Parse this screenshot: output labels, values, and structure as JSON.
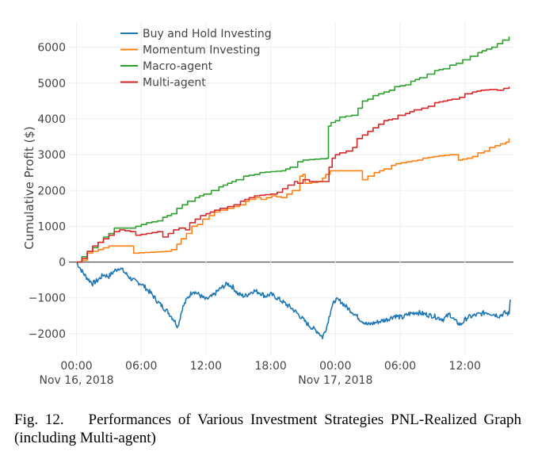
{
  "caption": {
    "label": "Fig. 12.",
    "text": "Performances of Various Investment Strategies PNL-Realized Graph (including Multi-agent)"
  },
  "chart_data": {
    "type": "line",
    "title": "",
    "xlabel": "",
    "ylabel": "Cumulative Profit ($)",
    "x_unit": "hours since Nov 16, 2018 00:00",
    "xlim": [
      -0.7,
      40.5
    ],
    "ylim": [
      -2600,
      6700
    ],
    "y_ticks": [
      -2000,
      -1000,
      0,
      1000,
      2000,
      3000,
      4000,
      5000,
      6000
    ],
    "y_tick_labels": [
      "−2000",
      "−1000",
      "0",
      "1000",
      "2000",
      "3000",
      "4000",
      "5000",
      "6000"
    ],
    "x_ticks": [
      {
        "x": 0,
        "label": "00:00",
        "sublabel": "Nov 16, 2018"
      },
      {
        "x": 6,
        "label": "06:00",
        "sublabel": ""
      },
      {
        "x": 12,
        "label": "12:00",
        "sublabel": ""
      },
      {
        "x": 18,
        "label": "18:00",
        "sublabel": ""
      },
      {
        "x": 24,
        "label": "00:00",
        "sublabel": "Nov 17, 2018"
      },
      {
        "x": 30,
        "label": "06:00",
        "sublabel": ""
      },
      {
        "x": 36,
        "label": "12:00",
        "sublabel": ""
      }
    ],
    "grid": true,
    "legend_position": "top-left",
    "series": [
      {
        "name": "Buy and Hold Investing",
        "color": "#1f77b4",
        "style": "noisy",
        "points": [
          [
            0,
            0
          ],
          [
            0.3,
            -150
          ],
          [
            0.6,
            -300
          ],
          [
            1,
            -450
          ],
          [
            1.5,
            -600
          ],
          [
            2,
            -500
          ],
          [
            2.5,
            -350
          ],
          [
            3,
            -400
          ],
          [
            3.5,
            -250
          ],
          [
            4,
            -150
          ],
          [
            4.5,
            -300
          ],
          [
            5,
            -450
          ],
          [
            5.5,
            -550
          ],
          [
            6,
            -600
          ],
          [
            6.5,
            -750
          ],
          [
            7,
            -900
          ],
          [
            7.5,
            -1100
          ],
          [
            8,
            -1250
          ],
          [
            8.5,
            -1400
          ],
          [
            9,
            -1600
          ],
          [
            9.4,
            -1800
          ],
          [
            9.8,
            -1300
          ],
          [
            10.3,
            -1000
          ],
          [
            10.8,
            -800
          ],
          [
            11.3,
            -900
          ],
          [
            12,
            -1050
          ],
          [
            12.6,
            -950
          ],
          [
            13.3,
            -750
          ],
          [
            14,
            -600
          ],
          [
            14.5,
            -700
          ],
          [
            15,
            -900
          ],
          [
            15.6,
            -950
          ],
          [
            16.4,
            -800
          ],
          [
            17,
            -850
          ],
          [
            17.5,
            -950
          ],
          [
            18,
            -900
          ],
          [
            18.6,
            -1000
          ],
          [
            19.3,
            -1150
          ],
          [
            20,
            -1300
          ],
          [
            20.7,
            -1500
          ],
          [
            21.3,
            -1700
          ],
          [
            21.9,
            -1850
          ],
          [
            22.4,
            -1950
          ],
          [
            22.8,
            -2100
          ],
          [
            23.2,
            -1800
          ],
          [
            23.6,
            -1300
          ],
          [
            24,
            -1050
          ],
          [
            24.5,
            -1100
          ],
          [
            25,
            -1250
          ],
          [
            25.6,
            -1400
          ],
          [
            26.3,
            -1600
          ],
          [
            27,
            -1750
          ],
          [
            27.6,
            -1700
          ],
          [
            28.2,
            -1650
          ],
          [
            28.8,
            -1600
          ],
          [
            29.5,
            -1500
          ],
          [
            30.2,
            -1550
          ],
          [
            30.8,
            -1450
          ],
          [
            31.5,
            -1400
          ],
          [
            32.2,
            -1450
          ],
          [
            33,
            -1500
          ],
          [
            33.5,
            -1550
          ],
          [
            34,
            -1600
          ],
          [
            34.6,
            -1450
          ],
          [
            35.1,
            -1650
          ],
          [
            35.6,
            -1750
          ],
          [
            36.2,
            -1550
          ],
          [
            36.8,
            -1500
          ],
          [
            37.4,
            -1450
          ],
          [
            38,
            -1400
          ],
          [
            38.6,
            -1450
          ],
          [
            39.2,
            -1500
          ],
          [
            39.7,
            -1420
          ],
          [
            40.1,
            -1450
          ],
          [
            40.2,
            -1050
          ]
        ]
      },
      {
        "name": "Momentum Investing",
        "color": "#ff7f0e",
        "style": "step",
        "points": [
          [
            0,
            0
          ],
          [
            0.5,
            50
          ],
          [
            1,
            250
          ],
          [
            1.5,
            300
          ],
          [
            2,
            350
          ],
          [
            2.5,
            400
          ],
          [
            3,
            450
          ],
          [
            5,
            450
          ],
          [
            5.3,
            250
          ],
          [
            8.3,
            300
          ],
          [
            8.8,
            350
          ],
          [
            9.3,
            500
          ],
          [
            9.7,
            650
          ],
          [
            10.2,
            800
          ],
          [
            10.7,
            1000
          ],
          [
            11.2,
            1050
          ],
          [
            11.7,
            1200
          ],
          [
            12.3,
            1300
          ],
          [
            12.8,
            1400
          ],
          [
            13.3,
            1450
          ],
          [
            14,
            1500
          ],
          [
            14.6,
            1550
          ],
          [
            15.1,
            1600
          ],
          [
            15.7,
            1700
          ],
          [
            16,
            1750
          ],
          [
            16.6,
            1800
          ],
          [
            17.1,
            1750
          ],
          [
            18.1,
            1850
          ],
          [
            19,
            1800
          ],
          [
            19.5,
            1900
          ],
          [
            20,
            2000
          ],
          [
            20.7,
            2400
          ],
          [
            21,
            2450
          ],
          [
            21.2,
            2200
          ],
          [
            22.4,
            2250
          ],
          [
            22.8,
            2350
          ],
          [
            23.1,
            2450
          ],
          [
            23.5,
            2550
          ],
          [
            25.5,
            2550
          ],
          [
            26.3,
            2550
          ],
          [
            26.5,
            2300
          ],
          [
            27,
            2400
          ],
          [
            27.6,
            2500
          ],
          [
            28.1,
            2550
          ],
          [
            28.5,
            2600
          ],
          [
            29.2,
            2700
          ],
          [
            29.6,
            2750
          ],
          [
            30.6,
            2800
          ],
          [
            31.6,
            2850
          ],
          [
            32.1,
            2900
          ],
          [
            33.1,
            2950
          ],
          [
            34.6,
            3000
          ],
          [
            35.1,
            3000
          ],
          [
            35.4,
            2850
          ],
          [
            36.2,
            2900
          ],
          [
            36.7,
            2950
          ],
          [
            37.2,
            3050
          ],
          [
            37.8,
            3100
          ],
          [
            38.3,
            3200
          ],
          [
            38.8,
            3250
          ],
          [
            39.3,
            3300
          ],
          [
            39.8,
            3350
          ],
          [
            40.1,
            3450
          ]
        ]
      },
      {
        "name": "Macro-agent",
        "color": "#2ca02c",
        "style": "step",
        "points": [
          [
            0,
            0
          ],
          [
            0.5,
            150
          ],
          [
            1,
            300
          ],
          [
            1.5,
            400
          ],
          [
            2,
            550
          ],
          [
            2.5,
            700
          ],
          [
            3,
            800
          ],
          [
            3.5,
            950
          ],
          [
            5,
            950
          ],
          [
            5.5,
            1000
          ],
          [
            6.5,
            1100
          ],
          [
            7.5,
            1150
          ],
          [
            8,
            1250
          ],
          [
            8.8,
            1350
          ],
          [
            9.3,
            1500
          ],
          [
            9.8,
            1600
          ],
          [
            10.3,
            1700
          ],
          [
            11,
            1800
          ],
          [
            11.8,
            1900
          ],
          [
            12.5,
            2000
          ],
          [
            13.2,
            2100
          ],
          [
            14,
            2200
          ],
          [
            14.8,
            2300
          ],
          [
            15.5,
            2400
          ],
          [
            16.5,
            2450
          ],
          [
            17,
            2500
          ],
          [
            19,
            2550
          ],
          [
            19.8,
            2650
          ],
          [
            20.5,
            2800
          ],
          [
            21,
            2850
          ],
          [
            23.2,
            2900
          ],
          [
            23.35,
            3800
          ],
          [
            23.6,
            3900
          ],
          [
            24,
            3950
          ],
          [
            24.4,
            4050
          ],
          [
            25.5,
            4100
          ],
          [
            26.1,
            4300
          ],
          [
            26.5,
            4500
          ],
          [
            27,
            4550
          ],
          [
            27.5,
            4650
          ],
          [
            28,
            4700
          ],
          [
            28.5,
            4750
          ],
          [
            29,
            4800
          ],
          [
            29.5,
            4900
          ],
          [
            30.5,
            4950
          ],
          [
            31,
            5050
          ],
          [
            31.8,
            5150
          ],
          [
            32.5,
            5250
          ],
          [
            33.2,
            5350
          ],
          [
            34,
            5400
          ],
          [
            34.6,
            5500
          ],
          [
            35.2,
            5550
          ],
          [
            35.8,
            5650
          ],
          [
            36.5,
            5750
          ],
          [
            37.2,
            5850
          ],
          [
            38,
            5950
          ],
          [
            38.5,
            6000
          ],
          [
            39,
            6100
          ],
          [
            39.5,
            6200
          ],
          [
            40.1,
            6300
          ]
        ]
      },
      {
        "name": "Multi-agent",
        "color": "#d62728",
        "style": "step",
        "points": [
          [
            0,
            0
          ],
          [
            0.5,
            100
          ],
          [
            1,
            300
          ],
          [
            1.5,
            450
          ],
          [
            2,
            550
          ],
          [
            2.5,
            650
          ],
          [
            3,
            750
          ],
          [
            3.5,
            850
          ],
          [
            4,
            900
          ],
          [
            5,
            850
          ],
          [
            5.5,
            750
          ],
          [
            6.5,
            800
          ],
          [
            7.5,
            850
          ],
          [
            8,
            700
          ],
          [
            8.5,
            800
          ],
          [
            9,
            900
          ],
          [
            9.5,
            950
          ],
          [
            10.1,
            900
          ],
          [
            10.5,
            1100
          ],
          [
            11,
            1200
          ],
          [
            11.5,
            1300
          ],
          [
            12,
            1350
          ],
          [
            12.8,
            1450
          ],
          [
            13.3,
            1500
          ],
          [
            14,
            1550
          ],
          [
            14.6,
            1600
          ],
          [
            15.2,
            1700
          ],
          [
            16,
            1800
          ],
          [
            16.5,
            1850
          ],
          [
            18,
            1900
          ],
          [
            18.6,
            1950
          ],
          [
            19.1,
            2050
          ],
          [
            19.6,
            2150
          ],
          [
            20.2,
            2250
          ],
          [
            20.5,
            2200
          ],
          [
            21,
            2300
          ],
          [
            21.6,
            2250
          ],
          [
            22.2,
            2250
          ],
          [
            23.2,
            2250
          ],
          [
            23.4,
            2650
          ],
          [
            23.7,
            2900
          ],
          [
            24,
            3000
          ],
          [
            24.4,
            3050
          ],
          [
            25,
            3100
          ],
          [
            25.6,
            3200
          ],
          [
            26,
            3450
          ],
          [
            26.5,
            3550
          ],
          [
            27,
            3650
          ],
          [
            27.5,
            3750
          ],
          [
            28,
            3850
          ],
          [
            28.5,
            3950
          ],
          [
            29.3,
            4000
          ],
          [
            29.8,
            4100
          ],
          [
            30.5,
            4150
          ],
          [
            31.3,
            4250
          ],
          [
            32,
            4300
          ],
          [
            32.6,
            4350
          ],
          [
            33.2,
            4450
          ],
          [
            34,
            4500
          ],
          [
            34.8,
            4550
          ],
          [
            35.5,
            4600
          ],
          [
            36,
            4700
          ],
          [
            36.7,
            4750
          ],
          [
            37.5,
            4800
          ],
          [
            38.3,
            4820
          ],
          [
            39,
            4800
          ],
          [
            39.6,
            4850
          ],
          [
            40.1,
            4900
          ]
        ]
      }
    ]
  }
}
